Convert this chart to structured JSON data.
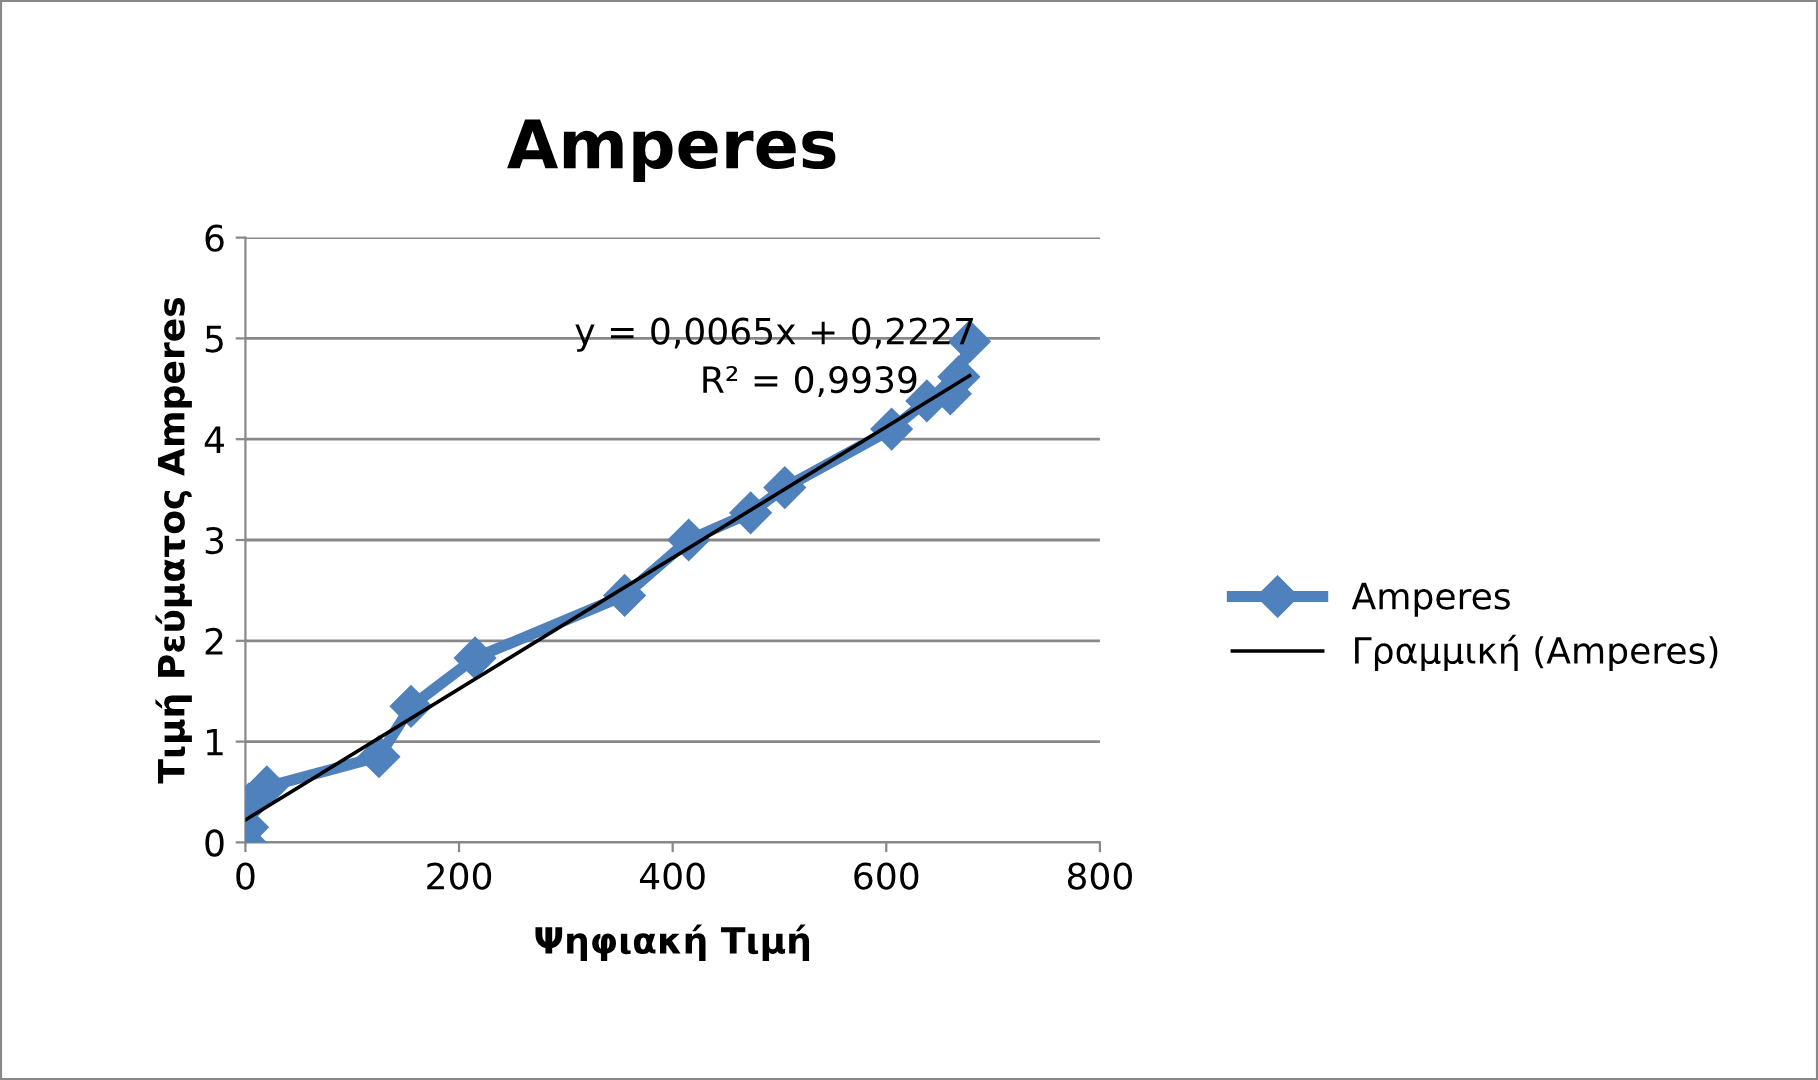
{
  "chart_data": {
    "type": "line",
    "title": "Amperes",
    "xlabel": "Ψηφιακή Τιμή",
    "ylabel": "Τιμή Ρεύματος Amperes",
    "series": [
      {
        "name": "Amperes",
        "color": "#4f81bd",
        "marker": "diamond",
        "x": [
          0,
          2,
          3,
          20,
          125,
          155,
          215,
          355,
          415,
          473,
          505,
          605,
          638,
          660,
          668,
          678
        ],
        "values": [
          0,
          0.15,
          0.38,
          0.55,
          0.85,
          1.35,
          1.83,
          2.45,
          3.0,
          3.27,
          3.52,
          4.1,
          4.38,
          4.45,
          4.62,
          4.97
        ]
      },
      {
        "name": "Γραμμική (Amperes)",
        "color": "#000000",
        "marker": "none",
        "x": [
          0,
          678
        ],
        "values": [
          0.2227,
          4.6297
        ]
      }
    ],
    "annotations": [
      "y = 0,0065x + 0,2227",
      "R² = 0,9939"
    ],
    "xlim": [
      0,
      800
    ],
    "xticks": [
      0,
      200,
      400,
      600,
      800
    ],
    "ylim": [
      0,
      6
    ],
    "yticks": [
      0,
      1,
      2,
      3,
      4,
      5,
      6
    ],
    "grid": "y",
    "legend": "right"
  }
}
